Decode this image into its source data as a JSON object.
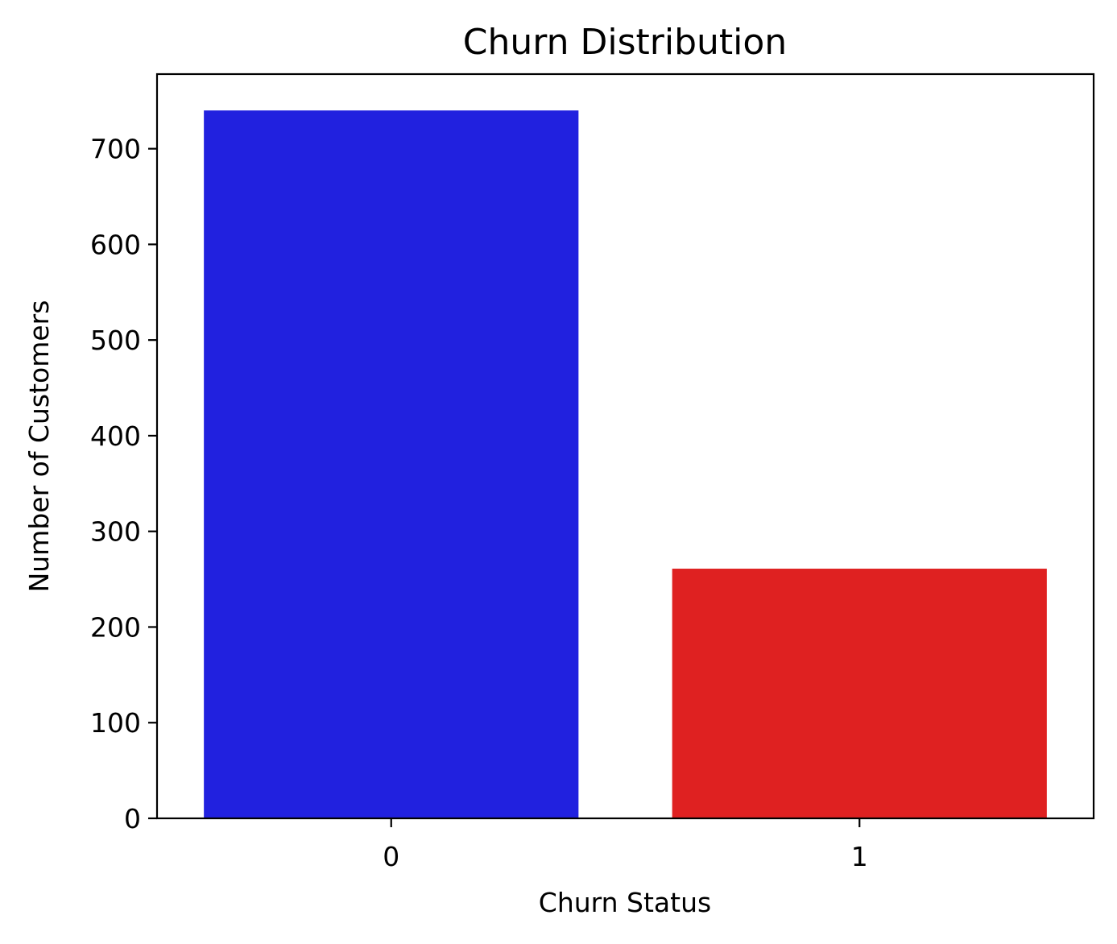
{
  "chart_data": {
    "type": "bar",
    "title": "Churn Distribution",
    "xlabel": "Churn Status",
    "ylabel": "Number of Customers",
    "categories": [
      "0",
      "1"
    ],
    "values": [
      740,
      261
    ],
    "colors": [
      "#2121df",
      "#df2121"
    ],
    "ylim": [
      0,
      778
    ],
    "yticks": [
      0,
      100,
      200,
      300,
      400,
      500,
      600,
      700
    ],
    "grid": false,
    "legend": "none"
  }
}
